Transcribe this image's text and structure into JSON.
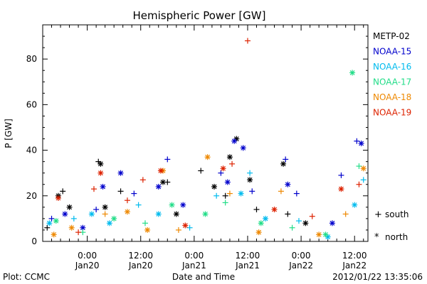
{
  "chart_data": {
    "type": "scatter",
    "title": "Hemispheric Power [GW]",
    "ylabel": "P [GW]",
    "xlabel": "Date and Time",
    "ylim": [
      0,
      95
    ],
    "xlim": [
      "2012-01-19 14:00",
      "2012-01-22 15:00"
    ],
    "yticks": [
      0,
      20,
      40,
      60,
      80
    ],
    "xticks": [
      {
        "t": "2012-01-20 00:00",
        "label1": "0:00",
        "label2": "Jan20"
      },
      {
        "t": "2012-01-20 12:00",
        "label1": "12:00",
        "label2": "Jan20"
      },
      {
        "t": "2012-01-21 00:00",
        "label1": "0:00",
        "label2": "Jan21"
      },
      {
        "t": "2012-01-21 12:00",
        "label1": "12:00",
        "label2": "Jan21"
      },
      {
        "t": "2012-01-22 00:00",
        "label1": "0:00",
        "label2": "Jan22"
      },
      {
        "t": "2012-01-22 12:00",
        "label1": "12:00",
        "label2": "Jan22"
      }
    ],
    "marker_legend": [
      {
        "symbol": "+",
        "label": "south"
      },
      {
        "symbol": "*",
        "label": "north"
      }
    ],
    "series": [
      {
        "name": "METP-02",
        "color": "#000000",
        "points": [
          {
            "t": "2012-01-19 15:00",
            "v": 6,
            "m": "+"
          },
          {
            "t": "2012-01-19 17:30",
            "v": 20,
            "m": "*"
          },
          {
            "t": "2012-01-19 18:30",
            "v": 22,
            "m": "+"
          },
          {
            "t": "2012-01-19 20:00",
            "v": 15,
            "m": "*"
          },
          {
            "t": "2012-01-20 02:30",
            "v": 35,
            "m": "+"
          },
          {
            "t": "2012-01-20 03:00",
            "v": 34,
            "m": "*"
          },
          {
            "t": "2012-01-20 04:00",
            "v": 15,
            "m": "*"
          },
          {
            "t": "2012-01-20 07:30",
            "v": 22,
            "m": "+"
          },
          {
            "t": "2012-01-20 17:00",
            "v": 26,
            "m": "*"
          },
          {
            "t": "2012-01-20 18:00",
            "v": 26,
            "m": "+"
          },
          {
            "t": "2012-01-20 20:00",
            "v": 12,
            "m": "*"
          },
          {
            "t": "2012-01-21 01:30",
            "v": 31,
            "m": "+"
          },
          {
            "t": "2012-01-21 04:30",
            "v": 24,
            "m": "*"
          },
          {
            "t": "2012-01-21 07:00",
            "v": 20,
            "m": "+"
          },
          {
            "t": "2012-01-21 08:00",
            "v": 37,
            "m": "*"
          },
          {
            "t": "2012-01-21 09:30",
            "v": 45,
            "m": "*"
          },
          {
            "t": "2012-01-21 12:30",
            "v": 27,
            "m": "*"
          },
          {
            "t": "2012-01-21 14:00",
            "v": 14,
            "m": "+"
          },
          {
            "t": "2012-01-21 20:00",
            "v": 34,
            "m": "*"
          },
          {
            "t": "2012-01-21 21:00",
            "v": 12,
            "m": "+"
          },
          {
            "t": "2012-01-22 01:00",
            "v": 8,
            "m": "*"
          }
        ]
      },
      {
        "name": "NOAA-15",
        "color": "#0000cc",
        "points": [
          {
            "t": "2012-01-19 16:00",
            "v": 10,
            "m": "+"
          },
          {
            "t": "2012-01-19 19:00",
            "v": 12,
            "m": "*"
          },
          {
            "t": "2012-01-19 23:00",
            "v": 6,
            "m": "*"
          },
          {
            "t": "2012-01-20 02:00",
            "v": 14,
            "m": "+"
          },
          {
            "t": "2012-01-20 03:30",
            "v": 24,
            "m": "*"
          },
          {
            "t": "2012-01-20 07:30",
            "v": 30,
            "m": "*"
          },
          {
            "t": "2012-01-20 10:30",
            "v": 21,
            "m": "+"
          },
          {
            "t": "2012-01-20 16:00",
            "v": 24,
            "m": "*"
          },
          {
            "t": "2012-01-20 18:00",
            "v": 36,
            "m": "+"
          },
          {
            "t": "2012-01-20 21:30",
            "v": 16,
            "m": "*"
          },
          {
            "t": "2012-01-21 06:00",
            "v": 30,
            "m": "+"
          },
          {
            "t": "2012-01-21 07:30",
            "v": 26,
            "m": "*"
          },
          {
            "t": "2012-01-21 09:00",
            "v": 44,
            "m": "*"
          },
          {
            "t": "2012-01-21 11:00",
            "v": 41,
            "m": "*"
          },
          {
            "t": "2012-01-21 13:00",
            "v": 22,
            "m": "+"
          },
          {
            "t": "2012-01-21 20:30",
            "v": 36,
            "m": "+"
          },
          {
            "t": "2012-01-21 21:00",
            "v": 25,
            "m": "*"
          },
          {
            "t": "2012-01-21 23:00",
            "v": 21,
            "m": "+"
          },
          {
            "t": "2012-01-22 07:00",
            "v": 8,
            "m": "*"
          },
          {
            "t": "2012-01-22 09:00",
            "v": 29,
            "m": "+"
          },
          {
            "t": "2012-01-22 12:30",
            "v": 44,
            "m": "+"
          },
          {
            "t": "2012-01-22 13:30",
            "v": 43,
            "m": "*"
          }
        ]
      },
      {
        "name": "NOAA-16",
        "color": "#00bbee",
        "points": [
          {
            "t": "2012-01-19 15:30",
            "v": 8,
            "m": "*"
          },
          {
            "t": "2012-01-19 21:00",
            "v": 10,
            "m": "+"
          },
          {
            "t": "2012-01-20 01:00",
            "v": 12,
            "m": "*"
          },
          {
            "t": "2012-01-20 05:00",
            "v": 8,
            "m": "*"
          },
          {
            "t": "2012-01-20 11:30",
            "v": 16,
            "m": "+"
          },
          {
            "t": "2012-01-20 16:00",
            "v": 12,
            "m": "*"
          },
          {
            "t": "2012-01-20 23:00",
            "v": 6,
            "m": "+"
          },
          {
            "t": "2012-01-21 05:00",
            "v": 20,
            "m": "+"
          },
          {
            "t": "2012-01-21 10:30",
            "v": 21,
            "m": "*"
          },
          {
            "t": "2012-01-21 12:30",
            "v": 30,
            "m": "+"
          },
          {
            "t": "2012-01-21 16:00",
            "v": 10,
            "m": "*"
          },
          {
            "t": "2012-01-21 23:30",
            "v": 9,
            "m": "+"
          },
          {
            "t": "2012-01-22 06:00",
            "v": 2,
            "m": "*"
          },
          {
            "t": "2012-01-22 12:00",
            "v": 16,
            "m": "*"
          },
          {
            "t": "2012-01-22 14:00",
            "v": 27,
            "m": "+"
          }
        ]
      },
      {
        "name": "NOAA-17",
        "color": "#22dd88",
        "points": [
          {
            "t": "2012-01-19 17:00",
            "v": 9,
            "m": "*"
          },
          {
            "t": "2012-01-19 23:00",
            "v": 4,
            "m": "+"
          },
          {
            "t": "2012-01-20 06:00",
            "v": 10,
            "m": "*"
          },
          {
            "t": "2012-01-20 13:00",
            "v": 8,
            "m": "+"
          },
          {
            "t": "2012-01-20 19:00",
            "v": 16,
            "m": "*"
          },
          {
            "t": "2012-01-21 02:30",
            "v": 12,
            "m": "*"
          },
          {
            "t": "2012-01-21 07:00",
            "v": 17,
            "m": "+"
          },
          {
            "t": "2012-01-21 15:00",
            "v": 8,
            "m": "*"
          },
          {
            "t": "2012-01-21 22:00",
            "v": 6,
            "m": "+"
          },
          {
            "t": "2012-01-22 05:30",
            "v": 3,
            "m": "*"
          },
          {
            "t": "2012-01-22 11:30",
            "v": 74,
            "m": "*"
          },
          {
            "t": "2012-01-22 13:00",
            "v": 33,
            "m": "+"
          }
        ]
      },
      {
        "name": "NOAA-18",
        "color": "#ee8800",
        "points": [
          {
            "t": "2012-01-19 16:30",
            "v": 3,
            "m": "*"
          },
          {
            "t": "2012-01-19 20:30",
            "v": 6,
            "m": "*"
          },
          {
            "t": "2012-01-20 04:00",
            "v": 12,
            "m": "+"
          },
          {
            "t": "2012-01-20 09:00",
            "v": 13,
            "m": "*"
          },
          {
            "t": "2012-01-20 13:30",
            "v": 5,
            "m": "*"
          },
          {
            "t": "2012-01-20 17:00",
            "v": 31,
            "m": "*"
          },
          {
            "t": "2012-01-20 20:30",
            "v": 5,
            "m": "+"
          },
          {
            "t": "2012-01-21 03:00",
            "v": 37,
            "m": "*"
          },
          {
            "t": "2012-01-21 08:00",
            "v": 21,
            "m": "+"
          },
          {
            "t": "2012-01-21 14:30",
            "v": 4,
            "m": "*"
          },
          {
            "t": "2012-01-21 19:30",
            "v": 22,
            "m": "+"
          },
          {
            "t": "2012-01-22 04:00",
            "v": 3,
            "m": "*"
          },
          {
            "t": "2012-01-22 10:00",
            "v": 12,
            "m": "+"
          },
          {
            "t": "2012-01-22 14:00",
            "v": 32,
            "m": "*"
          }
        ]
      },
      {
        "name": "NOAA-19",
        "color": "#dd2200",
        "points": [
          {
            "t": "2012-01-19 17:30",
            "v": 19,
            "m": "*"
          },
          {
            "t": "2012-01-19 22:00",
            "v": 4,
            "m": "+"
          },
          {
            "t": "2012-01-20 01:30",
            "v": 23,
            "m": "+"
          },
          {
            "t": "2012-01-20 03:00",
            "v": 30,
            "m": "*"
          },
          {
            "t": "2012-01-20 09:00",
            "v": 18,
            "m": "+"
          },
          {
            "t": "2012-01-20 12:30",
            "v": 27,
            "m": "+"
          },
          {
            "t": "2012-01-20 16:30",
            "v": 31,
            "m": "*"
          },
          {
            "t": "2012-01-20 22:00",
            "v": 7,
            "m": "*"
          },
          {
            "t": "2012-01-21 06:30",
            "v": 32,
            "m": "*"
          },
          {
            "t": "2012-01-21 08:30",
            "v": 34,
            "m": "+"
          },
          {
            "t": "2012-01-21 12:00",
            "v": 88,
            "m": "+"
          },
          {
            "t": "2012-01-21 18:00",
            "v": 14,
            "m": "*"
          },
          {
            "t": "2012-01-22 02:30",
            "v": 11,
            "m": "+"
          },
          {
            "t": "2012-01-22 09:00",
            "v": 23,
            "m": "*"
          },
          {
            "t": "2012-01-22 13:00",
            "v": 25,
            "m": "+"
          }
        ]
      }
    ]
  },
  "footer": {
    "left": "Plot: CCMC",
    "right": "2012/01/22 13:35:06"
  }
}
